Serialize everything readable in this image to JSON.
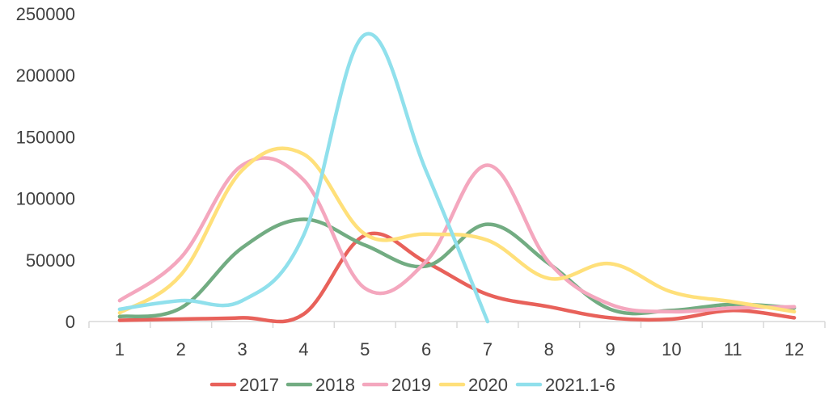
{
  "chart_data": {
    "type": "line",
    "title": "",
    "xlabel": "",
    "ylabel": "",
    "ylim": [
      0,
      250000
    ],
    "y_ticks": [
      0,
      50000,
      100000,
      150000,
      200000,
      250000
    ],
    "y_tick_labels": [
      "0",
      "50000",
      "100000",
      "150000",
      "200000",
      "250000"
    ],
    "categories": [
      "1",
      "2",
      "3",
      "4",
      "5",
      "6",
      "7",
      "8",
      "9",
      "10",
      "11",
      "12"
    ],
    "smooth": true,
    "grid": false,
    "legend_position": "bottom",
    "series": [
      {
        "name": "2017",
        "color": "#E8615A",
        "values": [
          1000,
          2000,
          3000,
          6000,
          70000,
          48000,
          22000,
          12000,
          3000,
          2000,
          9000,
          3000
        ]
      },
      {
        "name": "2018",
        "color": "#72AC82",
        "values": [
          4000,
          11000,
          60000,
          83000,
          62000,
          45000,
          79000,
          47000,
          10000,
          9000,
          14000,
          11000
        ]
      },
      {
        "name": "2019",
        "color": "#F4A7BE",
        "values": [
          17000,
          52000,
          127000,
          115000,
          27000,
          49000,
          127000,
          48000,
          14000,
          8000,
          11000,
          12000
        ]
      },
      {
        "name": "2020",
        "color": "#FFE07A",
        "values": [
          7000,
          38000,
          123000,
          136000,
          71000,
          71000,
          66000,
          35000,
          47000,
          24000,
          16000,
          8000
        ]
      },
      {
        "name": "2021.1-6",
        "color": "#90E0EC",
        "values": [
          10000,
          17000,
          17000,
          70000,
          233000,
          122000,
          0,
          null,
          null,
          null,
          null,
          null
        ]
      }
    ]
  }
}
